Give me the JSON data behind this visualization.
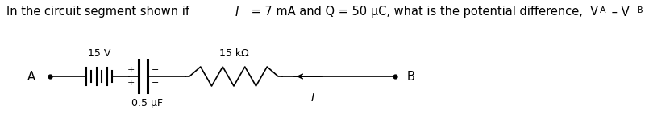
{
  "background": "#ffffff",
  "text_color": "#000000",
  "wire_color": "#000000",
  "figsize": [
    8.05,
    1.63
  ],
  "dpi": 100,
  "label_A": "A",
  "label_B": "B",
  "label_15V": "15 V",
  "label_cap": "0.5 μF",
  "label_res": "15 kΩ",
  "label_I": "I",
  "title_line": "In the circuit segment shown if I = 7 mA and Q = 50 μC, what is the potential difference, V",
  "x_lim": [
    0,
    8.05
  ],
  "y_lim": [
    0,
    1.63
  ]
}
